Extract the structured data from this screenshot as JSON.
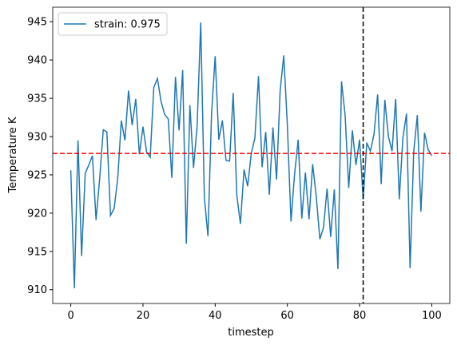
{
  "chart_data": {
    "type": "line",
    "xlabel": "timestep",
    "ylabel": "Temperature K",
    "x": [
      0,
      1,
      2,
      3,
      4,
      5,
      6,
      7,
      8,
      9,
      10,
      11,
      12,
      13,
      14,
      15,
      16,
      17,
      18,
      19,
      20,
      21,
      22,
      23,
      24,
      25,
      26,
      27,
      28,
      29,
      30,
      31,
      32,
      33,
      34,
      35,
      36,
      37,
      38,
      39,
      40,
      41,
      42,
      43,
      44,
      45,
      46,
      47,
      48,
      49,
      50,
      51,
      52,
      53,
      54,
      55,
      56,
      57,
      58,
      59,
      60,
      61,
      62,
      63,
      64,
      65,
      66,
      67,
      68,
      69,
      70,
      71,
      72,
      73,
      74,
      75,
      76,
      77,
      78,
      79,
      80,
      81,
      82,
      83,
      84,
      85,
      86,
      87,
      88,
      89,
      90,
      91,
      92,
      93,
      94,
      95,
      96,
      97,
      98,
      99,
      100
    ],
    "series": [
      {
        "name": "strain: 0.975",
        "color": "#1f77b4",
        "values": [
          925.6,
          910.2,
          929.5,
          914.4,
          925.2,
          926.3,
          927.5,
          919.1,
          924.5,
          930.9,
          930.6,
          919.7,
          920.6,
          924.5,
          932.1,
          929.5,
          936.0,
          931.5,
          934.9,
          927.7,
          931.3,
          928.0,
          927.3,
          936.4,
          937.6,
          934.6,
          932.9,
          932.3,
          924.6,
          937.8,
          930.8,
          938.7,
          916.0,
          934.1,
          925.9,
          931.4,
          944.9,
          922.1,
          917.0,
          933.0,
          940.5,
          929.6,
          932.1,
          926.9,
          926.8,
          935.7,
          922.3,
          918.6,
          925.7,
          923.5,
          927.8,
          929.8,
          937.9,
          926.0,
          930.6,
          922.4,
          931.2,
          924.4,
          936.0,
          940.6,
          931.5,
          918.9,
          925.1,
          929.6,
          919.3,
          925.3,
          919.2,
          926.4,
          922.2,
          916.6,
          918.1,
          923.2,
          916.9,
          923.1,
          912.7,
          937.2,
          932.8,
          923.3,
          930.8,
          926.3,
          929.6,
          921.8,
          929.2,
          928.1,
          930.3,
          935.5,
          923.8,
          934.8,
          930.0,
          928.1,
          934.9,
          921.8,
          929.8,
          933.0,
          912.8,
          928.0,
          932.8,
          920.2,
          930.5,
          928.3,
          927.5
        ]
      }
    ],
    "hline": {
      "value": 927.8,
      "color": "#ff0000"
    },
    "vline": {
      "value": 81,
      "color": "#000000"
    },
    "xlim": [
      -5,
      105
    ],
    "ylim": [
      908.2,
      946.9
    ],
    "xticks": [
      0,
      20,
      40,
      60,
      80,
      100
    ],
    "yticks": [
      910,
      915,
      920,
      925,
      930,
      935,
      940,
      945
    ],
    "legend": "upper left"
  }
}
